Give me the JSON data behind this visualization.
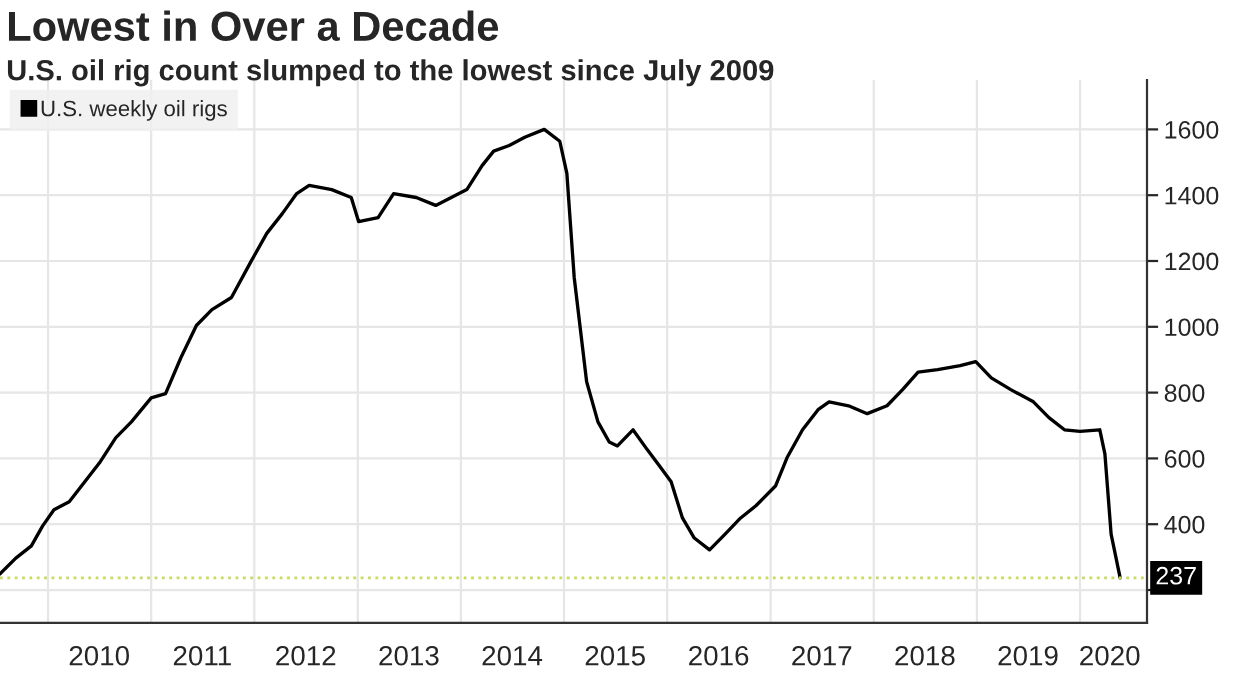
{
  "chart_data": {
    "type": "line",
    "title": "Lowest in Over a Decade",
    "subtitle": "U.S. oil rig count slumped to the lowest since July 2009",
    "x": [
      "2009-07-15",
      "2009-09-09",
      "2009-11-03",
      "2009-12-13",
      "2010-01-22",
      "2010-03-17",
      "2010-05-11",
      "2010-07-05",
      "2010-08-29",
      "2010-10-23",
      "2011-01-01",
      "2011-02-21",
      "2011-04-16",
      "2011-06-10",
      "2011-08-04",
      "2011-10-12",
      "2011-12-20",
      "2012-02-14",
      "2012-04-09",
      "2012-05-30",
      "2012-07-13",
      "2012-10-01",
      "2012-12-09",
      "2013-01-04",
      "2013-03-14",
      "2013-05-08",
      "2013-07-27",
      "2013-10-04",
      "2013-11-28",
      "2014-01-22",
      "2014-03-17",
      "2014-04-27",
      "2014-06-21",
      "2014-08-15",
      "2014-10-23",
      "2014-12-17",
      "2015-01-11",
      "2015-02-06",
      "2015-03-22",
      "2015-05-01",
      "2015-06-10",
      "2015-07-09",
      "2015-09-02",
      "2015-10-23",
      "2015-12-05",
      "2016-01-15",
      "2016-02-24",
      "2016-04-06",
      "2016-05-30",
      "2016-07-24",
      "2016-09-17",
      "2016-11-10",
      "2017-01-19",
      "2017-02-28",
      "2017-04-24",
      "2017-06-18",
      "2017-07-27",
      "2017-10-04",
      "2017-12-09",
      "2018-02-17",
      "2018-04-13",
      "2018-06-07",
      "2018-08-15",
      "2018-11-03",
      "2018-12-28",
      "2019-02-21",
      "2019-05-01",
      "2019-07-20",
      "2019-09-13",
      "2019-11-07",
      "2020-01-01",
      "2020-03-11",
      "2020-03-29",
      "2020-04-20",
      "2020-05-22"
    ],
    "series": [
      {
        "name": "U.S. weekly oil rigs",
        "color": "#000000",
        "values": [
          249,
          297,
          334,
          395,
          444,
          468,
          529,
          590,
          663,
          711,
          784,
          797,
          906,
          1004,
          1052,
          1089,
          1198,
          1284,
          1344,
          1405,
          1430,
          1417,
          1393,
          1320,
          1332,
          1405,
          1393,
          1369,
          1393,
          1417,
          1490,
          1534,
          1551,
          1576,
          1600,
          1564,
          1466,
          1150,
          833,
          711,
          650,
          638,
          687,
          626,
          577,
          529,
          419,
          358,
          322,
          370,
          419,
          456,
          517,
          602,
          687,
          748,
          772,
          760,
          736,
          760,
          809,
          862,
          870,
          882,
          894,
          845,
          809,
          772,
          724,
          687,
          682,
          687,
          614,
          370,
          237
        ]
      }
    ],
    "xlim": [
      "2009-07-15",
      "2020-08-25"
    ],
    "xticks": [
      {
        "value": "2010-01-01",
        "label": null
      },
      {
        "value": "2011-01-01",
        "label": null
      },
      {
        "value": "2012-01-01",
        "label": null
      },
      {
        "value": "2013-01-01",
        "label": null
      },
      {
        "value": "2014-01-01",
        "label": null
      },
      {
        "value": "2015-01-01",
        "label": null
      },
      {
        "value": "2016-01-01",
        "label": null
      },
      {
        "value": "2017-01-01",
        "label": null
      },
      {
        "value": "2018-01-01",
        "label": null
      },
      {
        "value": "2019-01-01",
        "label": null
      },
      {
        "value": "2020-01-01",
        "label": null
      },
      {
        "value": "2010-07-01",
        "label": "2010"
      },
      {
        "value": "2011-07-01",
        "label": "2011"
      },
      {
        "value": "2012-07-01",
        "label": "2012"
      },
      {
        "value": "2013-07-01",
        "label": "2013"
      },
      {
        "value": "2014-07-01",
        "label": "2014"
      },
      {
        "value": "2015-07-01",
        "label": "2015"
      },
      {
        "value": "2016-07-01",
        "label": "2016"
      },
      {
        "value": "2017-07-01",
        "label": "2017"
      },
      {
        "value": "2018-07-01",
        "label": "2018"
      },
      {
        "value": "2019-07-01",
        "label": "2019"
      },
      {
        "value": "2020-04-15",
        "label": "2020"
      }
    ],
    "ylim": [
      100,
      1750
    ],
    "yticks": [
      {
        "value": 200,
        "label": null
      },
      400,
      600,
      800,
      1000,
      1200,
      1400,
      1600
    ],
    "ref_lines": [
      {
        "axis": "y",
        "value": 237,
        "label": "237",
        "color": "#c8dc5a",
        "line_style": "dotted"
      }
    ],
    "grid": true,
    "legend": "top left",
    "marker": "none",
    "line_style": "solid"
  }
}
